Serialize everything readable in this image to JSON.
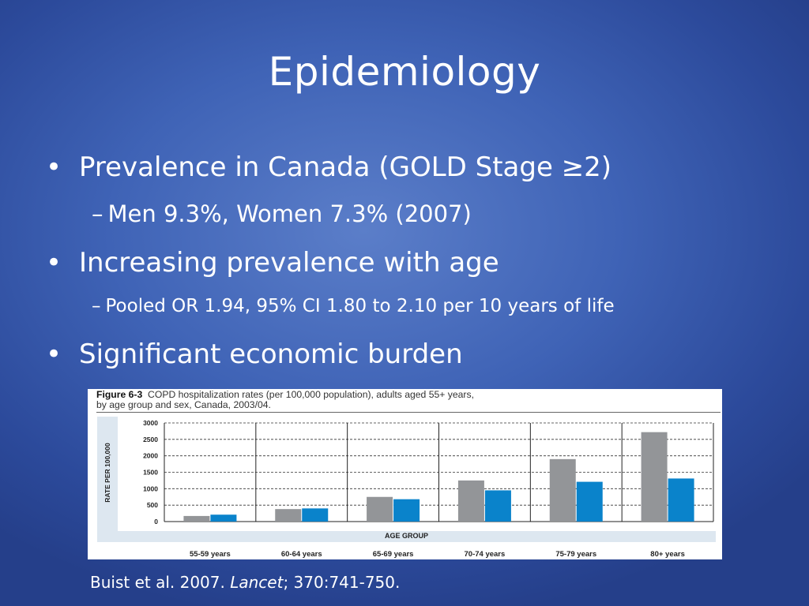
{
  "slide": {
    "title": "Epidemiology",
    "bullets": [
      {
        "text": "Prevalence in Canada (GOLD Stage ≥2)",
        "sub": "Men 9.3%, Women 7.3% (2007)"
      },
      {
        "text": "Increasing prevalence with age",
        "sub": "Pooled OR 1.94, 95% CI 1.80 to 2.10 per 10 years of life"
      },
      {
        "text": "Significant economic burden",
        "sub": ""
      }
    ],
    "bullet_glyph": "•",
    "dash_glyph": "–",
    "citation": {
      "authors": "Buist et al. 2007. ",
      "journal": "Lancet",
      "ref": "; 370:741-750."
    }
  },
  "figure": {
    "label": "Figure 6-3",
    "caption": "COPD hospitalization rates (per 100,000 population), adults aged 55+ years,",
    "caption2": "by age group and sex, Canada, 2003/04."
  },
  "chart_data": {
    "type": "bar",
    "ylabel": "RATE PER 100,000",
    "xlabel": "AGE GROUP",
    "ylim": [
      0,
      3000
    ],
    "yticks": [
      0,
      500,
      1000,
      1500,
      2000,
      2500,
      3000
    ],
    "grid": "dashed horizontal",
    "categories": [
      "55-59 years",
      "60-64 years",
      "65-69 years",
      "70-74 years",
      "75-79 years",
      "80+ years"
    ],
    "series": [
      {
        "values": [
          170,
          380,
          750,
          1250,
          1900,
          2720
        ],
        "color": "#939598"
      },
      {
        "values": [
          210,
          400,
          680,
          950,
          1210,
          1310
        ],
        "color": "#0a83cb"
      }
    ]
  }
}
